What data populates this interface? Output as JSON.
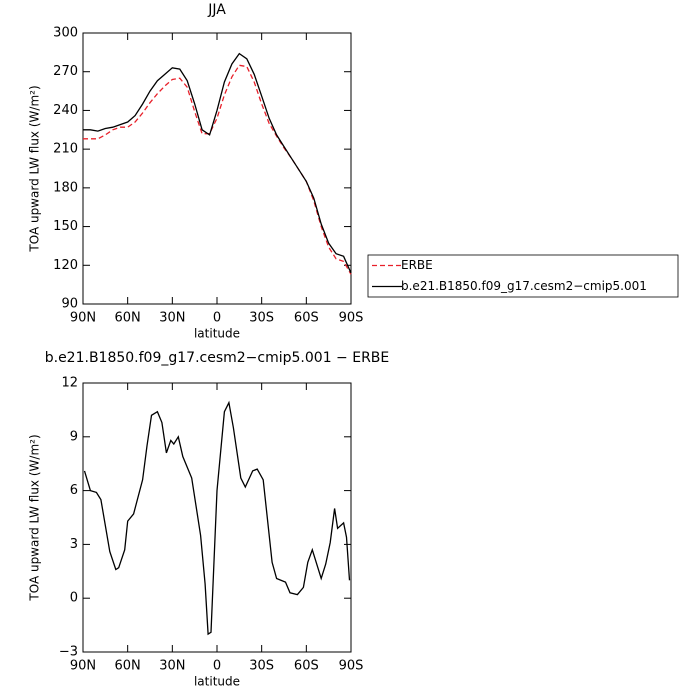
{
  "chart_data": [
    {
      "type": "line",
      "title": "JJA",
      "xlabel": "latitude",
      "ylabel": "TOA upward LW flux (W/m²)",
      "xlim": [
        90,
        -90
      ],
      "ylim": [
        90,
        300
      ],
      "xticks": [
        {
          "value": 90,
          "label": "90N"
        },
        {
          "value": 60,
          "label": "60N"
        },
        {
          "value": 30,
          "label": "30N"
        },
        0,
        {
          "value": -30,
          "label": "30S"
        },
        {
          "value": -60,
          "label": "60S"
        },
        {
          "value": -90,
          "label": "90S"
        }
      ],
      "yticks": [
        90,
        120,
        150,
        180,
        210,
        240,
        270,
        300
      ],
      "x": [
        90,
        85,
        80,
        75,
        70,
        65,
        60,
        55,
        50,
        45,
        40,
        35,
        30,
        25,
        20,
        15,
        10,
        5,
        0,
        -5,
        -10,
        -15,
        -20,
        -25,
        -30,
        -35,
        -40,
        -45,
        -50,
        -55,
        -60,
        -65,
        -70,
        -75,
        -80,
        -85,
        -90
      ],
      "legend": "outside-right",
      "series": [
        {
          "name": "ERBE",
          "color": "#e8202a",
          "dashed": true,
          "values": [
            218,
            218,
            218,
            221,
            225,
            227,
            227,
            231,
            238,
            246,
            253,
            259,
            264,
            265,
            258,
            239,
            222,
            222,
            234,
            252,
            266,
            275,
            274,
            262,
            245,
            230,
            220,
            211,
            203,
            194,
            185,
            170,
            150,
            134,
            125,
            123,
            113
          ]
        },
        {
          "name": "b.e21.B1850.f09_g17.cesm2−cmip5.001",
          "color": "#000000",
          "dashed": false,
          "values": [
            225,
            225,
            224,
            226,
            227,
            229,
            231,
            236,
            245,
            255,
            263,
            268,
            273,
            272,
            263,
            245,
            225,
            221,
            240,
            262,
            276,
            284,
            280,
            268,
            251,
            234,
            221,
            212,
            203,
            194,
            185,
            172,
            152,
            137,
            129,
            127,
            114
          ]
        }
      ]
    },
    {
      "type": "line",
      "title": "b.e21.B1850.f09_g17.cesm2−cmip5.001 − ERBE",
      "xlabel": "latitude",
      "ylabel": "TOA upward LW flux (W/m²)",
      "xlim": [
        90,
        -90
      ],
      "ylim": [
        -3,
        12
      ],
      "xticks": [
        {
          "value": 90,
          "label": "90N"
        },
        {
          "value": 60,
          "label": "60N"
        },
        {
          "value": 30,
          "label": "30N"
        },
        0,
        {
          "value": -30,
          "label": "30S"
        },
        {
          "value": -60,
          "label": "60S"
        },
        {
          "value": -90,
          "label": "90S"
        }
      ],
      "yticks": [
        {
          "value": -3,
          "label": "−3"
        },
        0,
        3,
        6,
        9,
        12
      ],
      "x": [
        89,
        85,
        81,
        78,
        72,
        68,
        66,
        62,
        60,
        56,
        50,
        47,
        44,
        40,
        37,
        34,
        31,
        29,
        26,
        23,
        17,
        11,
        8,
        6,
        4,
        0,
        -5,
        -8,
        -11,
        -16,
        -19,
        -24,
        -27,
        -31,
        -37,
        -40,
        -46,
        -49,
        -54,
        -58,
        -61,
        -64,
        -70,
        -73,
        -76,
        -79,
        -81,
        -85,
        -87,
        -89
      ],
      "series": [
        {
          "color": "#000000",
          "dashed": false,
          "values": [
            7.1,
            6.0,
            5.9,
            5.5,
            2.6,
            1.6,
            1.7,
            2.7,
            4.3,
            4.7,
            6.6,
            8.5,
            10.2,
            10.4,
            9.8,
            8.1,
            8.8,
            8.6,
            9.0,
            7.9,
            6.7,
            3.5,
            0.8,
            -2.0,
            -1.9,
            6.0,
            10.4,
            10.9,
            9.5,
            6.7,
            6.2,
            7.1,
            7.2,
            6.6,
            2.0,
            1.1,
            0.9,
            0.3,
            0.2,
            0.6,
            2.0,
            2.7,
            1.1,
            1.9,
            3.1,
            5.0,
            3.9,
            4.2,
            3.4,
            1.0
          ]
        }
      ]
    }
  ]
}
